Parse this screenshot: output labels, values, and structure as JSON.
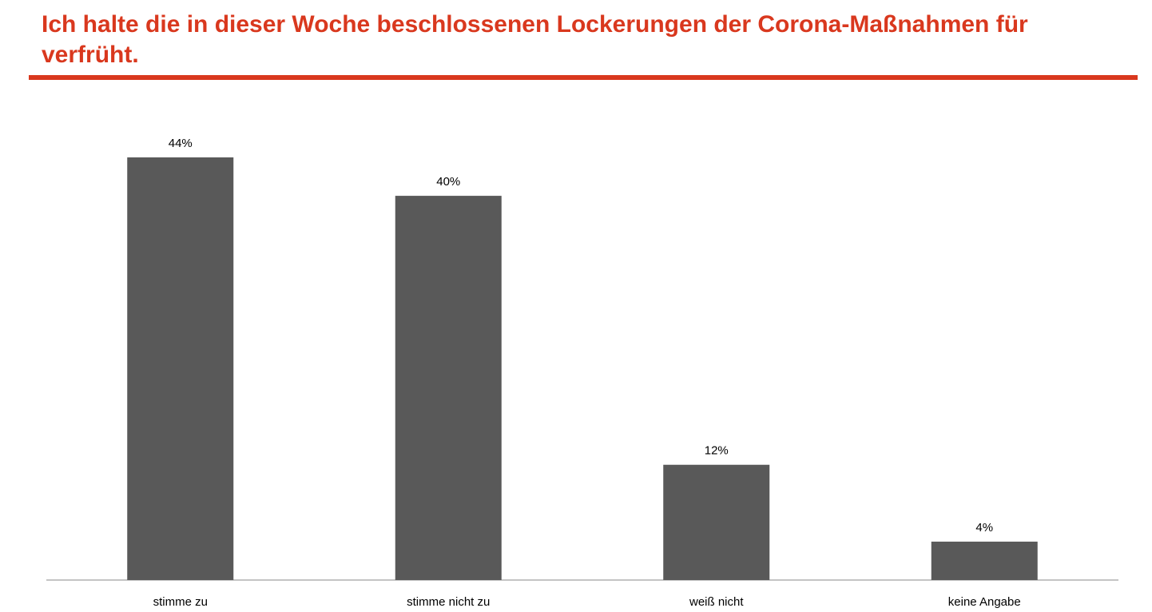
{
  "title": "Ich halte die in dieser Woche beschlossenen Lockerungen der Corona-Maßnahmen für verfrüht.",
  "colors": {
    "title": "#d9381e",
    "bar": "#595959",
    "axis": "#888888"
  },
  "chart_data": {
    "type": "bar",
    "title": "Ich halte die in dieser Woche beschlossenen Lockerungen der Corona-Maßnahmen für verfrüht.",
    "categories": [
      "stimme zu",
      "stimme nicht zu",
      "weiß nicht",
      "keine Angabe"
    ],
    "values": [
      44,
      40,
      12,
      4
    ],
    "value_labels": [
      "44%",
      "40%",
      "12%",
      "4%"
    ],
    "xlabel": "",
    "ylabel": "",
    "ylim": [
      0,
      44
    ],
    "grid": false,
    "legend": "none"
  }
}
